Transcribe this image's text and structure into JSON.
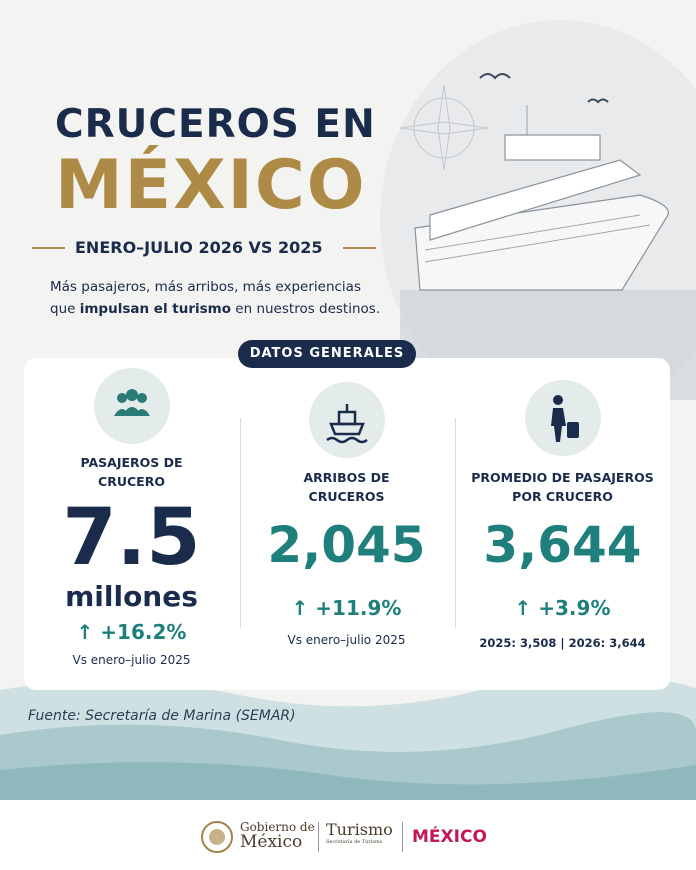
{
  "header": {
    "title_line1": "CRUCEROS EN",
    "title_line2": "MÉXICO",
    "subtitle": "ENERO–JULIO 2026 VS 2025",
    "intro": {
      "line1": "Más pasajeros, más arribos, más experiencias",
      "line2_start": "que ",
      "line2_bold": "impulsan el turismo",
      "line2_end": " en nuestros destinos."
    }
  },
  "badge": "DATOS GENERALES",
  "cards": [
    {
      "label": "PASAJEROS DE CRUCERO",
      "value": "7.5",
      "unit": "millones",
      "change": "+16.2%",
      "note": "Vs enero–julio 2025"
    },
    {
      "label": "ARRIBOS DE CRUCEROS",
      "value": "2,045",
      "change": "+11.9%",
      "note": "Vs enero–julio 2025"
    },
    {
      "label": "PROMEDIO DE PASAJEROS POR CRUCERO",
      "value": "3,644",
      "change": "+3.9%",
      "note": "2025: 3,508 | 2026: 3,644"
    }
  ],
  "source": "Fuente: Secretaría de Marina (SEMAR)",
  "footer": {
    "gob_line1": "Gobierno de",
    "gob_line2": "México",
    "turismo": "Turismo",
    "turismo_sub": "Secretaría de Turismo",
    "mexico": "MÉXICO"
  }
}
